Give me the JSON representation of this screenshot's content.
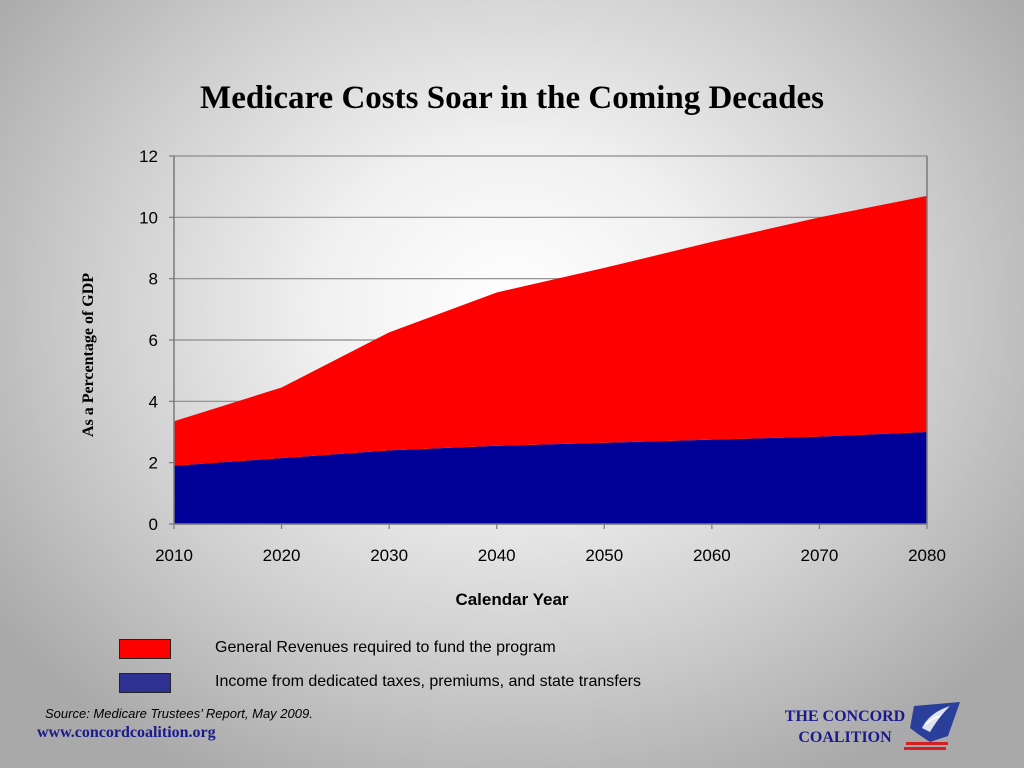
{
  "slide": {
    "title": "Medicare Costs Soar in the Coming Decades",
    "source": "Source: Medicare Trustees’ Report, May 2009.",
    "website": "www.concordcoalition.org",
    "logo_line1": "THE CONCORD",
    "logo_line2": "COALITION",
    "logo_icon": "concord-coalition-map-eagle-logo"
  },
  "legend": [
    {
      "label": "General Revenues required to fund the program",
      "color": "#ff0000"
    },
    {
      "label": "Income from dedicated taxes, premiums, and state transfers",
      "color": "#2e3192"
    }
  ],
  "chart_data": {
    "type": "area",
    "stacked": true,
    "title": "",
    "xlabel": "Calendar Year",
    "ylabel": "As a Percentage of GDP",
    "x": [
      2010,
      2020,
      2030,
      2040,
      2050,
      2060,
      2070,
      2080
    ],
    "xticks": [
      "2010",
      "2020",
      "2030",
      "2040",
      "2050",
      "2060",
      "2070",
      "2080"
    ],
    "yticks": [
      "0",
      "2",
      "4",
      "6",
      "8",
      "10",
      "12"
    ],
    "xlim": [
      2010,
      2080
    ],
    "ylim": [
      0,
      12
    ],
    "grid": "horizontal",
    "series": [
      {
        "name": "Income from dedicated taxes, premiums, and state transfers",
        "color": "#000099",
        "values": [
          1.9,
          2.15,
          2.4,
          2.55,
          2.65,
          2.75,
          2.85,
          3.0
        ]
      },
      {
        "name": "General Revenues required to fund the program",
        "color": "#ff0000",
        "values": [
          1.45,
          2.3,
          3.85,
          5.0,
          5.7,
          6.45,
          7.15,
          7.7
        ]
      }
    ]
  }
}
